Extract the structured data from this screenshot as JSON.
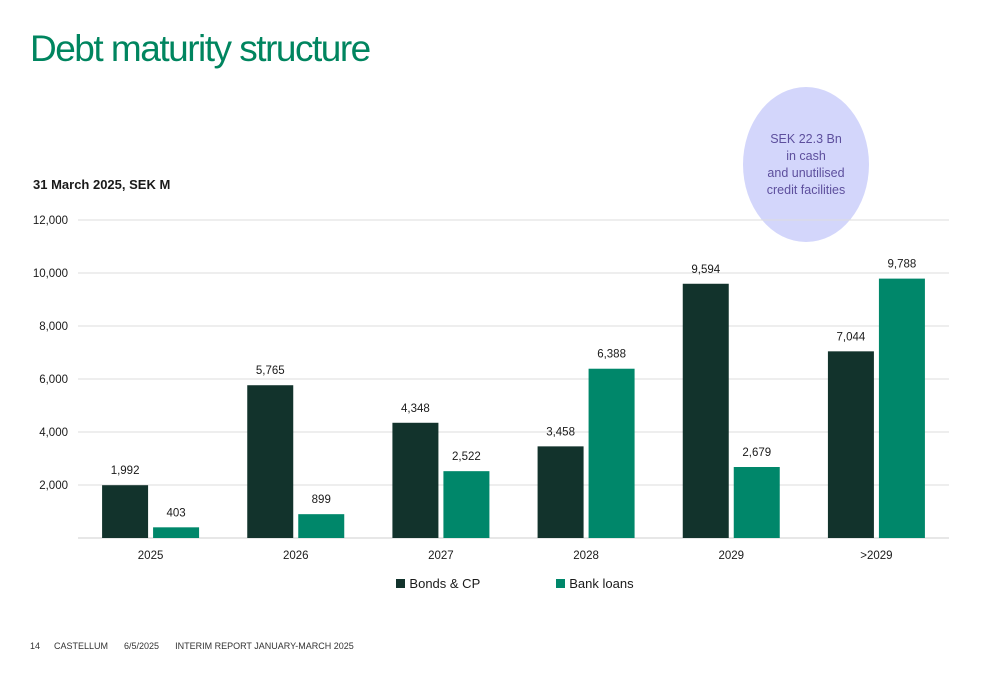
{
  "header": {
    "title": "Debt maturity structure"
  },
  "subtitle": "31 March 2025, SEK M",
  "callout": {
    "text": "SEK 22.3 Bn\nin cash\nand unutilised\ncredit facilities",
    "color": "#d3d6fb"
  },
  "colors": {
    "bonds": "#12332c",
    "bank": "#00876a",
    "grid": "#dcdcdc",
    "title": "#00855f"
  },
  "chart_data": {
    "type": "bar",
    "categories": [
      "2025",
      "2026",
      "2027",
      "2028",
      "2029",
      ">2029"
    ],
    "series": [
      {
        "name": "Bonds & CP",
        "values": [
          1992,
          5765,
          4348,
          3458,
          9594,
          7044
        ],
        "labels": [
          "1,992",
          "5,765",
          "4,348",
          "3,458",
          "9,594",
          "7,044"
        ]
      },
      {
        "name": "Bank loans",
        "values": [
          403,
          899,
          2522,
          6388,
          2679,
          9788
        ],
        "labels": [
          "403",
          "899",
          "2,522",
          "6,388",
          "2,679",
          "9,788"
        ]
      }
    ],
    "ylim": [
      0,
      12000
    ],
    "yticks": [
      2000,
      4000,
      6000,
      8000,
      10000,
      12000
    ],
    "ytick_labels": [
      "2,000",
      "4,000",
      "6,000",
      "8,000",
      "10,000",
      "12,000"
    ],
    "grid": true,
    "legend": "bottom-center"
  },
  "footer": {
    "page": "14",
    "company": "CASTELLUM",
    "date": "6/5/2025",
    "report": "INTERIM REPORT JANUARY-MARCH 2025"
  }
}
